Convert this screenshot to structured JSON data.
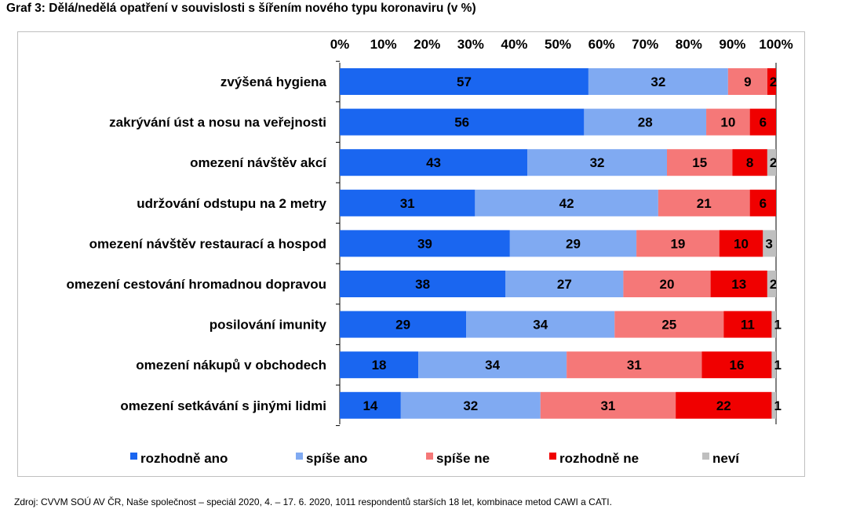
{
  "title": "Graf 3: Dělá/nedělá opatření v souvislosti s šířením nového typu koronaviru (v %)",
  "source": "Zdroj: CVVM SOÚ AV ČR, Naše společnost – speciál 2020, 4. – 17. 6. 2020, 1011 respondentů starších 18 let, kombinace metod CAWI a CATI.",
  "chart_data": {
    "type": "bar",
    "orientation": "horizontal",
    "stacked": true,
    "title": "Graf 3: Dělá/nedělá opatření v souvislosti s šířením nového typu koronaviru (v %)",
    "xlim": [
      0,
      100
    ],
    "x_ticks": [
      "0%",
      "10%",
      "20%",
      "30%",
      "40%",
      "50%",
      "60%",
      "70%",
      "80%",
      "90%",
      "100%"
    ],
    "x_axis_position": "top",
    "legend_position": "bottom",
    "grid": false,
    "categories": [
      "zvýšená hygiena",
      "zakrývání úst a nosu na veřejnosti",
      "omezení návštěv akcí",
      "udržování odstupu na 2 metry",
      "omezení návštěv restaurací a hospod",
      "omezení cestování hromadnou dopravou",
      "posilování imunity",
      "omezení nákupů v obchodech",
      "omezení setkávání s jinými lidmi"
    ],
    "series": [
      {
        "name": "rozhodně ano",
        "color": "#1a66f0",
        "values": [
          57,
          56,
          43,
          31,
          39,
          38,
          29,
          18,
          14
        ]
      },
      {
        "name": "spíše ano",
        "color": "#80aaf2",
        "values": [
          32,
          28,
          32,
          42,
          29,
          27,
          34,
          34,
          32
        ]
      },
      {
        "name": "spíše ne",
        "color": "#f57878",
        "values": [
          9,
          10,
          15,
          21,
          19,
          20,
          25,
          31,
          31
        ]
      },
      {
        "name": "rozhodně ne",
        "color": "#f00000",
        "values": [
          2,
          6,
          8,
          6,
          10,
          13,
          11,
          16,
          22
        ]
      },
      {
        "name": "neví",
        "color": "#bfbfbf",
        "values": [
          0,
          0,
          2,
          0,
          3,
          2,
          1,
          1,
          1
        ]
      }
    ]
  }
}
